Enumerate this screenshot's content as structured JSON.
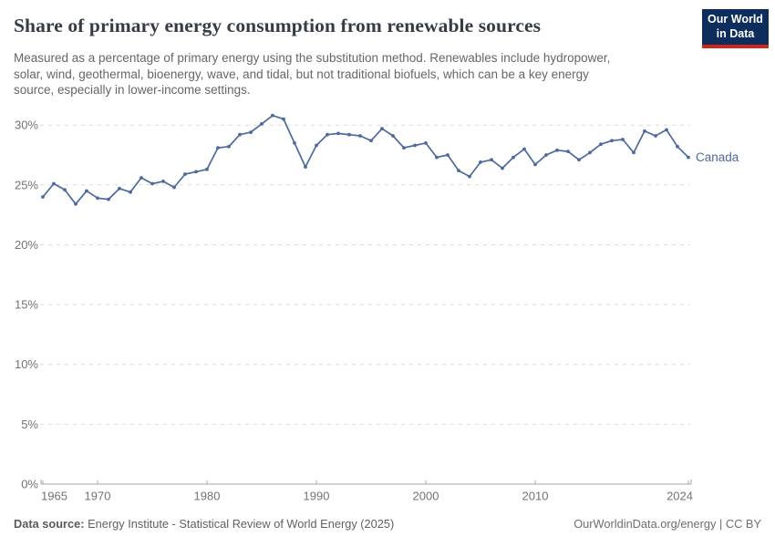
{
  "header": {
    "title": "Share of primary energy consumption from renewable sources",
    "subtitle_lines": [
      "Measured as a percentage of primary energy using the substitution method. Renewables include hydropower,",
      "solar, wind, geothermal, bioenergy, wave, and tidal, but not traditional biofuels, which can be a key energy",
      "source, especially in lower-income settings."
    ],
    "logo": {
      "line1": "Our World",
      "line2": "in Data"
    }
  },
  "chart_data": {
    "type": "line",
    "title": "Share of primary energy consumption from renewable sources",
    "xlabel": "",
    "ylabel": "",
    "xlim": [
      1965,
      2024
    ],
    "ylim": [
      0,
      31.5
    ],
    "grid": "horizontal-dashed",
    "legend_position": "end-of-line-label",
    "x_ticks": [
      1965,
      1970,
      1980,
      1990,
      2000,
      2010,
      2024
    ],
    "x_tick_labels": [
      "1965",
      "1970",
      "1980",
      "1990",
      "2000",
      "2010",
      "2024"
    ],
    "y_ticks": [
      0,
      5,
      10,
      15,
      20,
      25,
      30
    ],
    "y_tick_labels": [
      "0%",
      "5%",
      "10%",
      "15%",
      "20%",
      "25%",
      "30%"
    ],
    "series": [
      {
        "name": "Canada",
        "color": "#4c6a9c",
        "x": [
          1965,
          1966,
          1967,
          1968,
          1969,
          1970,
          1971,
          1972,
          1973,
          1974,
          1975,
          1976,
          1977,
          1978,
          1979,
          1980,
          1981,
          1982,
          1983,
          1984,
          1985,
          1986,
          1987,
          1988,
          1989,
          1990,
          1991,
          1992,
          1993,
          1994,
          1995,
          1996,
          1997,
          1998,
          1999,
          2000,
          2001,
          2002,
          2003,
          2004,
          2005,
          2006,
          2007,
          2008,
          2009,
          2010,
          2011,
          2012,
          2013,
          2014,
          2015,
          2016,
          2017,
          2018,
          2019,
          2020,
          2021,
          2022,
          2023,
          2024
        ],
        "values": [
          24.0,
          25.1,
          24.6,
          23.4,
          24.5,
          23.9,
          23.8,
          24.7,
          24.4,
          25.6,
          25.1,
          25.3,
          24.8,
          25.9,
          26.1,
          26.3,
          28.1,
          28.2,
          29.2,
          29.4,
          30.1,
          30.8,
          30.5,
          28.5,
          26.5,
          28.3,
          29.2,
          29.3,
          29.2,
          29.1,
          28.7,
          29.7,
          29.1,
          28.1,
          28.3,
          28.5,
          27.3,
          27.5,
          26.2,
          25.7,
          26.9,
          27.1,
          26.4,
          27.3,
          28.0,
          26.7,
          27.5,
          27.9,
          27.8,
          27.1,
          27.7,
          28.4,
          28.7,
          28.8,
          27.7,
          29.5,
          29.1,
          29.6,
          28.2,
          27.3
        ]
      }
    ]
  },
  "footer": {
    "datasource_label": "Data source:",
    "datasource_text": " Energy Institute - Statistical Review of World Energy (2025)",
    "rights": "OurWorldinData.org/energy | CC BY"
  },
  "colors": {
    "line": "#4c6a9c",
    "logo_navy": "#0d2e5c",
    "logo_red": "#d0241d",
    "gridline": "#dcdcdc",
    "axis": "#a6a6a6"
  }
}
